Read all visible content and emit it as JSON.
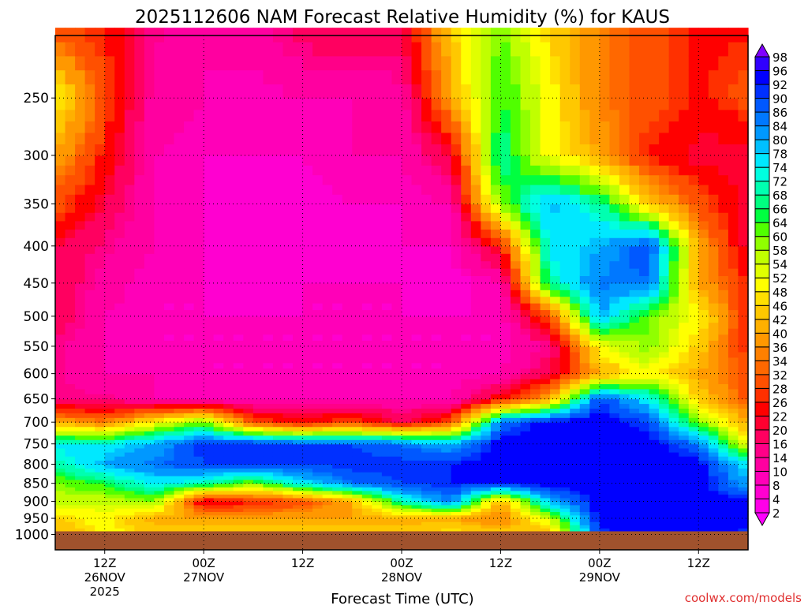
{
  "chart_data": {
    "type": "heatmap",
    "title": "2025112606 NAM Forecast Relative Humidity (%) for KAUS",
    "xlabel": "Forecast Time (UTC)",
    "ylabel": "",
    "credit": "coolwx.com/models",
    "x_hours": [
      0,
      6,
      12,
      18,
      24,
      30,
      36,
      42,
      48,
      54,
      60,
      66,
      72,
      78,
      84
    ],
    "xlim_hours": [
      0,
      84
    ],
    "x_ticks": [
      {
        "hour": 6,
        "lines": [
          "12Z",
          "26NOV",
          "2025"
        ]
      },
      {
        "hour": 18,
        "lines": [
          "00Z",
          "27NOV"
        ]
      },
      {
        "hour": 30,
        "lines": [
          "12Z"
        ]
      },
      {
        "hour": 42,
        "lines": [
          "00Z",
          "28NOV"
        ]
      },
      {
        "hour": 54,
        "lines": [
          "12Z"
        ]
      },
      {
        "hour": 66,
        "lines": [
          "00Z",
          "29NOV"
        ]
      },
      {
        "hour": 78,
        "lines": [
          "12Z"
        ]
      }
    ],
    "y_levels_hpa": [
      1000,
      950,
      900,
      850,
      800,
      750,
      700,
      650,
      600,
      550,
      500,
      450,
      400,
      350,
      300,
      250,
      200
    ],
    "y_ticks": [
      "250",
      "300",
      "350",
      "400",
      "450",
      "500",
      "550",
      "600",
      "650",
      "700",
      "750",
      "800",
      "850",
      "900",
      "950",
      "1000"
    ],
    "ylim_hpa": [
      1050,
      205
    ],
    "y_scale": "log",
    "surface_hpa": 990,
    "rh": [
      [
        40,
        50,
        45,
        45,
        45,
        45,
        45,
        45,
        50,
        45,
        40,
        90,
        95,
        95,
        90
      ],
      [
        45,
        50,
        40,
        40,
        40,
        40,
        40,
        40,
        40,
        35,
        55,
        95,
        95,
        95,
        95
      ],
      [
        55,
        55,
        60,
        20,
        25,
        30,
        40,
        70,
        85,
        40,
        80,
        95,
        95,
        95,
        95
      ],
      [
        60,
        65,
        75,
        70,
        60,
        75,
        85,
        90,
        92,
        92,
        95,
        95,
        95,
        95,
        80
      ],
      [
        70,
        80,
        85,
        90,
        90,
        90,
        92,
        92,
        92,
        95,
        95,
        95,
        95,
        95,
        75
      ],
      [
        75,
        75,
        80,
        92,
        92,
        90,
        90,
        85,
        80,
        95,
        95,
        95,
        95,
        85,
        50
      ],
      [
        40,
        35,
        50,
        60,
        30,
        25,
        30,
        20,
        30,
        85,
        95,
        95,
        90,
        60,
        40
      ],
      [
        15,
        15,
        10,
        10,
        10,
        10,
        10,
        10,
        10,
        25,
        40,
        90,
        75,
        45,
        30
      ],
      [
        15,
        10,
        10,
        8,
        8,
        8,
        8,
        8,
        8,
        10,
        20,
        40,
        50,
        40,
        30
      ],
      [
        15,
        10,
        8,
        8,
        8,
        8,
        8,
        8,
        8,
        8,
        15,
        50,
        60,
        45,
        25
      ],
      [
        20,
        10,
        8,
        8,
        8,
        8,
        8,
        8,
        8,
        8,
        30,
        80,
        60,
        50,
        25
      ],
      [
        20,
        12,
        8,
        8,
        6,
        8,
        8,
        8,
        6,
        10,
        70,
        85,
        85,
        40,
        25
      ],
      [
        20,
        15,
        10,
        8,
        6,
        8,
        6,
        8,
        8,
        25,
        75,
        80,
        90,
        40,
        20
      ],
      [
        30,
        20,
        10,
        8,
        6,
        6,
        8,
        8,
        10,
        60,
        80,
        70,
        45,
        30,
        20
      ],
      [
        40,
        25,
        10,
        8,
        8,
        8,
        10,
        10,
        20,
        70,
        50,
        40,
        25,
        20,
        20
      ],
      [
        50,
        30,
        12,
        10,
        8,
        10,
        10,
        12,
        40,
        65,
        50,
        35,
        30,
        25,
        30
      ],
      [
        30,
        25,
        15,
        10,
        12,
        18,
        20,
        20,
        45,
        60,
        45,
        35,
        30,
        25,
        25
      ]
    ],
    "colorbar_labels": [
      "98",
      "96",
      "92",
      "90",
      "86",
      "84",
      "80",
      "78",
      "74",
      "72",
      "68",
      "66",
      "64",
      "60",
      "58",
      "54",
      "52",
      "48",
      "46",
      "42",
      "40",
      "36",
      "34",
      "32",
      "28",
      "26",
      "22",
      "20",
      "16",
      "14",
      "10",
      "8",
      "4",
      "2"
    ],
    "colors_low_to_high": [
      "#ff00ff",
      "#ff00e8",
      "#ff00d0",
      "#ff00b8",
      "#ff00a0",
      "#ff0088",
      "#ff0060",
      "#ff0030",
      "#ff0000",
      "#ff3000",
      "#ff5000",
      "#ff6800",
      "#ff8000",
      "#ff9800",
      "#ffb000",
      "#ffc800",
      "#ffe000",
      "#ffff00",
      "#e0ff00",
      "#c0ff00",
      "#90ff00",
      "#50ff00",
      "#00ff40",
      "#00ff80",
      "#00ffb0",
      "#00ffe0",
      "#00e8ff",
      "#00c0ff",
      "#0098ff",
      "#0078ff",
      "#0058ff",
      "#0030ff",
      "#0000ff",
      "#3000ff",
      "#6000ff",
      "#8000ff"
    ],
    "ground_color": "#a0522d"
  }
}
